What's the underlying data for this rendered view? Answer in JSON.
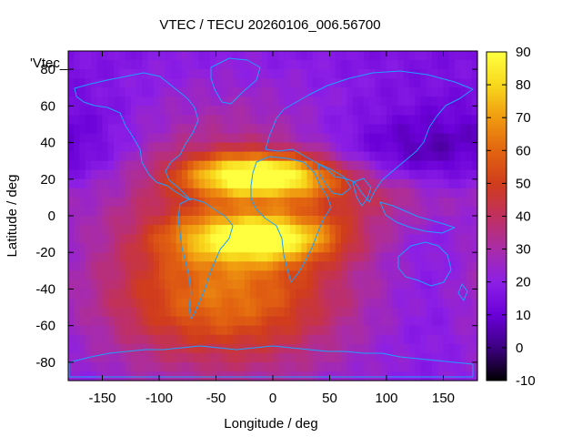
{
  "chart_data": {
    "type": "heatmap",
    "title": "VTEC / TECU 20260106_006.56700",
    "xlabel": "Longitude / deg",
    "ylabel": "Latitude / deg",
    "legend_label": "'Vtec_",
    "legend_position": "top-left",
    "xlim": [
      -180,
      180
    ],
    "ylim": [
      -90,
      90
    ],
    "x_ticks": [
      -150,
      -100,
      -50,
      0,
      50,
      100,
      150
    ],
    "y_ticks": [
      -80,
      -60,
      -40,
      -20,
      0,
      20,
      40,
      60,
      80
    ],
    "colorbar": {
      "range": [
        -10,
        90
      ],
      "ticks": [
        -10,
        0,
        10,
        20,
        30,
        40,
        50,
        60,
        70,
        80,
        90
      ],
      "palette": [
        "#000000",
        "#3c0080",
        "#6a00d8",
        "#8c1fe6",
        "#a82ca8",
        "#c03060",
        "#d03c1c",
        "#e26410",
        "#f09a10",
        "#f8d81c",
        "#ffff40"
      ]
    },
    "coastline_color": "#1ea0ff",
    "grid": false,
    "grid_resolution_deg": 5,
    "tec_field": {
      "background": 15,
      "features": [
        {
          "kind": "equatorial_crest",
          "lon": -10,
          "lat": 22,
          "value": 78,
          "width_lon": 45,
          "width_lat": 8
        },
        {
          "kind": "equatorial_crest",
          "lon": -10,
          "lat": -12,
          "value": 66,
          "width_lon": 50,
          "width_lat": 9
        },
        {
          "kind": "broad_daytime",
          "lon": -40,
          "lat": -10,
          "value": 48,
          "width_lon": 85,
          "width_lat": 50
        },
        {
          "kind": "southern_daytime",
          "lon": -45,
          "lat": -50,
          "value": 38,
          "width_lon": 80,
          "width_lat": 22
        },
        {
          "kind": "eastward_tail",
          "lon": 90,
          "lat": 10,
          "value": 30,
          "width_lon": 60,
          "width_lat": 10
        },
        {
          "kind": "night_minimum",
          "lon": 110,
          "lat": 35,
          "value": 4,
          "width_lon": 55,
          "width_lat": 15
        },
        {
          "kind": "night_minimum",
          "lon": -160,
          "lat": 40,
          "value": 8,
          "width_lon": 40,
          "width_lat": 20
        },
        {
          "kind": "polar_south",
          "lon": 0,
          "lat": -85,
          "value": 18,
          "width_lon": 360,
          "width_lat": 10
        }
      ]
    }
  }
}
